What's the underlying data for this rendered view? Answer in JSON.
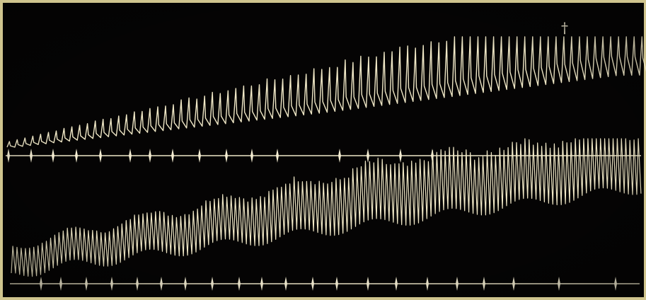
{
  "image": {
    "subject": "kymograph-tracing",
    "background_color": "#050404",
    "border_color": "#cfc48e",
    "trace_color": "#efe7c6",
    "marker_color": "#f4edd2"
  },
  "upper_tracing": {
    "cycles": 82
  },
  "lower_tracing": {
    "cycles": 150
  },
  "annotation_mark": {
    "glyph": "†"
  }
}
